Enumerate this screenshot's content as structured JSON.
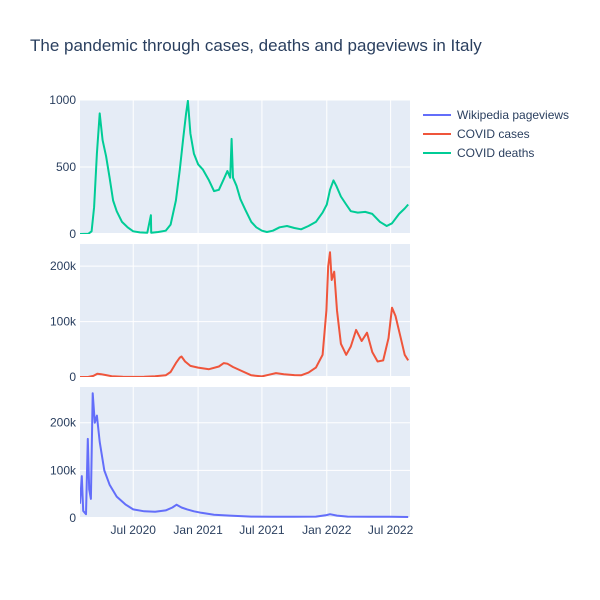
{
  "chart_data": {
    "type": "line",
    "title": "The pandemic through cases, deaths and pageviews in Italy",
    "legend_position": "top-right",
    "grid": true,
    "x_range": [
      "2020-02-01",
      "2022-08-25"
    ],
    "x_ticks": [
      {
        "date": "2020-07-01",
        "label": "Jul 2020"
      },
      {
        "date": "2021-01-01",
        "label": "Jan 2021"
      },
      {
        "date": "2021-07-01",
        "label": "Jul 2021"
      },
      {
        "date": "2022-01-01",
        "label": "Jan 2022"
      },
      {
        "date": "2022-07-01",
        "label": "Jul 2022"
      }
    ],
    "legend": [
      "Wikipedia pageviews",
      "COVID cases",
      "COVID deaths"
    ],
    "panels": [
      {
        "series_name": "COVID deaths",
        "color": "#00cc96",
        "ylim": [
          0,
          1000
        ],
        "yticks": [
          {
            "v": 0,
            "label": "0"
          },
          {
            "v": 500,
            "label": "500"
          },
          {
            "v": 1000,
            "label": "1000"
          }
        ],
        "points": [
          [
            "2020-02-01",
            0
          ],
          [
            "2020-02-25",
            2
          ],
          [
            "2020-03-05",
            20
          ],
          [
            "2020-03-12",
            200
          ],
          [
            "2020-03-20",
            600
          ],
          [
            "2020-03-28",
            900
          ],
          [
            "2020-04-05",
            700
          ],
          [
            "2020-04-15",
            580
          ],
          [
            "2020-04-25",
            420
          ],
          [
            "2020-05-05",
            250
          ],
          [
            "2020-05-15",
            170
          ],
          [
            "2020-05-30",
            90
          ],
          [
            "2020-06-15",
            50
          ],
          [
            "2020-07-01",
            20
          ],
          [
            "2020-07-20",
            12
          ],
          [
            "2020-08-10",
            10
          ],
          [
            "2020-08-20",
            140
          ],
          [
            "2020-08-21",
            10
          ],
          [
            "2020-09-10",
            15
          ],
          [
            "2020-10-01",
            25
          ],
          [
            "2020-10-15",
            70
          ],
          [
            "2020-10-30",
            250
          ],
          [
            "2020-11-10",
            480
          ],
          [
            "2020-11-20",
            720
          ],
          [
            "2020-11-28",
            900
          ],
          [
            "2020-12-03",
            993
          ],
          [
            "2020-12-10",
            750
          ],
          [
            "2020-12-20",
            600
          ],
          [
            "2021-01-01",
            520
          ],
          [
            "2021-01-15",
            480
          ],
          [
            "2021-02-01",
            400
          ],
          [
            "2021-02-15",
            320
          ],
          [
            "2021-03-01",
            330
          ],
          [
            "2021-03-15",
            410
          ],
          [
            "2021-03-25",
            470
          ],
          [
            "2021-04-02",
            420
          ],
          [
            "2021-04-06",
            710
          ],
          [
            "2021-04-10",
            420
          ],
          [
            "2021-04-20",
            360
          ],
          [
            "2021-05-01",
            260
          ],
          [
            "2021-05-15",
            180
          ],
          [
            "2021-06-01",
            90
          ],
          [
            "2021-06-15",
            50
          ],
          [
            "2021-07-01",
            25
          ],
          [
            "2021-07-15",
            15
          ],
          [
            "2021-08-01",
            25
          ],
          [
            "2021-08-20",
            50
          ],
          [
            "2021-09-10",
            60
          ],
          [
            "2021-10-01",
            45
          ],
          [
            "2021-10-20",
            35
          ],
          [
            "2021-11-10",
            60
          ],
          [
            "2021-12-01",
            90
          ],
          [
            "2021-12-20",
            160
          ],
          [
            "2022-01-01",
            220
          ],
          [
            "2022-01-10",
            330
          ],
          [
            "2022-01-20",
            400
          ],
          [
            "2022-01-28",
            360
          ],
          [
            "2022-02-10",
            280
          ],
          [
            "2022-02-25",
            220
          ],
          [
            "2022-03-10",
            170
          ],
          [
            "2022-03-30",
            160
          ],
          [
            "2022-04-20",
            165
          ],
          [
            "2022-05-10",
            150
          ],
          [
            "2022-06-01",
            90
          ],
          [
            "2022-06-20",
            60
          ],
          [
            "2022-07-05",
            80
          ],
          [
            "2022-07-25",
            150
          ],
          [
            "2022-08-10",
            190
          ],
          [
            "2022-08-20",
            220
          ]
        ]
      },
      {
        "series_name": "COVID cases",
        "color": "#ef553b",
        "ylim": [
          0,
          240000
        ],
        "yticks": [
          {
            "v": 0,
            "label": "0"
          },
          {
            "v": 100000,
            "label": "100k"
          },
          {
            "v": 200000,
            "label": "200k"
          }
        ],
        "points": [
          [
            "2020-02-01",
            0
          ],
          [
            "2020-02-25",
            200
          ],
          [
            "2020-03-10",
            2000
          ],
          [
            "2020-03-21",
            6000
          ],
          [
            "2020-04-01",
            5000
          ],
          [
            "2020-04-15",
            3500
          ],
          [
            "2020-05-01",
            1500
          ],
          [
            "2020-06-01",
            400
          ],
          [
            "2020-07-01",
            200
          ],
          [
            "2020-08-01",
            300
          ],
          [
            "2020-09-01",
            1500
          ],
          [
            "2020-10-01",
            3000
          ],
          [
            "2020-10-15",
            9000
          ],
          [
            "2020-10-30",
            25000
          ],
          [
            "2020-11-10",
            35000
          ],
          [
            "2020-11-15",
            37000
          ],
          [
            "2020-11-25",
            28000
          ],
          [
            "2020-12-10",
            20000
          ],
          [
            "2021-01-01",
            17000
          ],
          [
            "2021-02-01",
            14000
          ],
          [
            "2021-03-01",
            19000
          ],
          [
            "2021-03-15",
            25000
          ],
          [
            "2021-03-25",
            24000
          ],
          [
            "2021-04-10",
            18000
          ],
          [
            "2021-05-01",
            12000
          ],
          [
            "2021-06-01",
            3000
          ],
          [
            "2021-07-01",
            1000
          ],
          [
            "2021-07-20",
            4000
          ],
          [
            "2021-08-10",
            7000
          ],
          [
            "2021-09-01",
            5000
          ],
          [
            "2021-10-01",
            3500
          ],
          [
            "2021-10-20",
            3000
          ],
          [
            "2021-11-10",
            8000
          ],
          [
            "2021-12-01",
            17000
          ],
          [
            "2021-12-20",
            40000
          ],
          [
            "2021-12-31",
            120000
          ],
          [
            "2022-01-05",
            200000
          ],
          [
            "2022-01-10",
            225000
          ],
          [
            "2022-01-15",
            175000
          ],
          [
            "2022-01-22",
            190000
          ],
          [
            "2022-01-30",
            120000
          ],
          [
            "2022-02-10",
            60000
          ],
          [
            "2022-02-25",
            40000
          ],
          [
            "2022-03-10",
            55000
          ],
          [
            "2022-03-25",
            85000
          ],
          [
            "2022-04-10",
            65000
          ],
          [
            "2022-04-25",
            80000
          ],
          [
            "2022-05-10",
            45000
          ],
          [
            "2022-05-25",
            28000
          ],
          [
            "2022-06-10",
            30000
          ],
          [
            "2022-06-25",
            70000
          ],
          [
            "2022-07-05",
            125000
          ],
          [
            "2022-07-15",
            110000
          ],
          [
            "2022-07-30",
            70000
          ],
          [
            "2022-08-10",
            40000
          ],
          [
            "2022-08-20",
            30000
          ]
        ]
      },
      {
        "series_name": "Wikipedia pageviews",
        "color": "#636efa",
        "ylim": [
          0,
          275000
        ],
        "yticks": [
          {
            "v": 0,
            "label": "0"
          },
          {
            "v": 100000,
            "label": "100k"
          },
          {
            "v": 200000,
            "label": "200k"
          }
        ],
        "points": [
          [
            "2020-02-01",
            30000
          ],
          [
            "2020-02-06",
            88000
          ],
          [
            "2020-02-10",
            15000
          ],
          [
            "2020-02-18",
            8000
          ],
          [
            "2020-02-23",
            166000
          ],
          [
            "2020-02-27",
            60000
          ],
          [
            "2020-03-03",
            40000
          ],
          [
            "2020-03-08",
            262000
          ],
          [
            "2020-03-14",
            200000
          ],
          [
            "2020-03-20",
            215000
          ],
          [
            "2020-03-28",
            160000
          ],
          [
            "2020-04-10",
            100000
          ],
          [
            "2020-04-25",
            70000
          ],
          [
            "2020-05-15",
            45000
          ],
          [
            "2020-06-10",
            28000
          ],
          [
            "2020-07-01",
            18000
          ],
          [
            "2020-08-01",
            14000
          ],
          [
            "2020-09-01",
            13000
          ],
          [
            "2020-10-01",
            16000
          ],
          [
            "2020-10-20",
            22000
          ],
          [
            "2020-11-01",
            28000
          ],
          [
            "2020-11-15",
            22000
          ],
          [
            "2020-12-01",
            18000
          ],
          [
            "2020-12-20",
            14000
          ],
          [
            "2021-01-10",
            11000
          ],
          [
            "2021-02-15",
            7000
          ],
          [
            "2021-04-01",
            5000
          ],
          [
            "2021-06-01",
            3000
          ],
          [
            "2021-08-01",
            2500
          ],
          [
            "2021-10-01",
            2500
          ],
          [
            "2021-12-01",
            3000
          ],
          [
            "2021-12-31",
            6000
          ],
          [
            "2022-01-10",
            8000
          ],
          [
            "2022-01-30",
            5000
          ],
          [
            "2022-03-01",
            3000
          ],
          [
            "2022-05-01",
            2500
          ],
          [
            "2022-07-01",
            2500
          ],
          [
            "2022-08-20",
            2000
          ]
        ]
      }
    ]
  }
}
